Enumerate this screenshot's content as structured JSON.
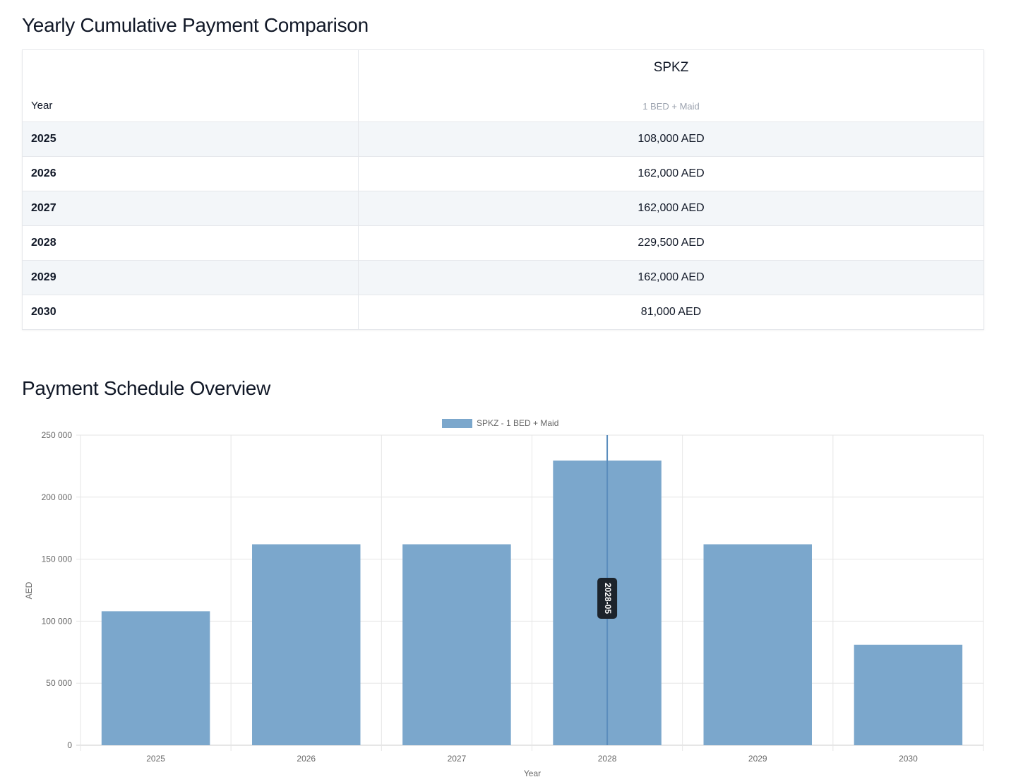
{
  "table_title": "Yearly Cumulative Payment Comparison",
  "table": {
    "year_header": "Year",
    "project": "SPKZ",
    "unit": "1 BED + Maid",
    "rows": [
      {
        "year": "2025",
        "value": "108,000 AED"
      },
      {
        "year": "2026",
        "value": "162,000 AED"
      },
      {
        "year": "2027",
        "value": "162,000 AED"
      },
      {
        "year": "2028",
        "value": "229,500 AED"
      },
      {
        "year": "2029",
        "value": "162,000 AED"
      },
      {
        "year": "2030",
        "value": "81,000 AED"
      }
    ]
  },
  "chart_title": "Payment Schedule Overview",
  "chart_data": {
    "type": "bar",
    "categories": [
      "2025",
      "2026",
      "2027",
      "2028",
      "2029",
      "2030"
    ],
    "series": [
      {
        "name": "SPKZ - 1 BED + Maid",
        "values": [
          108000,
          162000,
          162000,
          229500,
          162000,
          81000
        ],
        "color": "#7ba7cc"
      }
    ],
    "xlabel": "Year",
    "ylabel": "AED",
    "ylim": [
      0,
      250000
    ],
    "yticks": [
      0,
      50000,
      100000,
      150000,
      200000,
      250000
    ],
    "ytick_labels": [
      "0",
      "50 000",
      "100 000",
      "150 000",
      "200 000",
      "250 000"
    ],
    "grid": true,
    "legend": "top-center",
    "annotation": {
      "label": "2028-05",
      "category": "2028"
    }
  }
}
